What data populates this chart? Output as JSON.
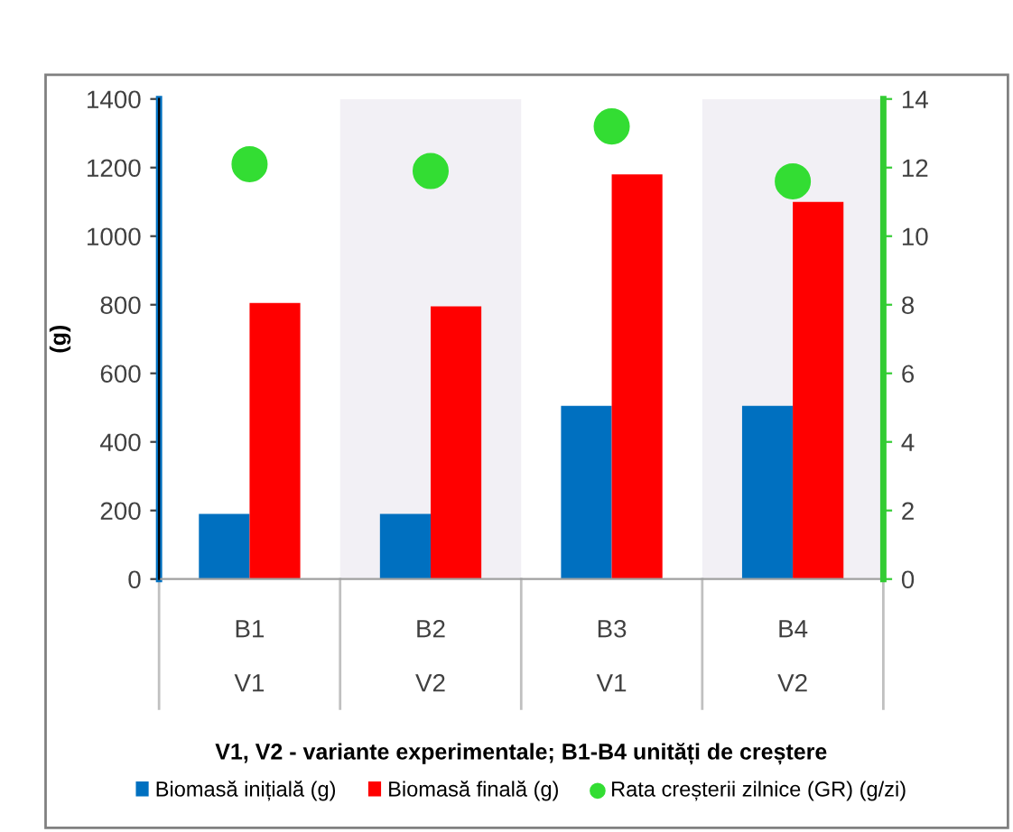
{
  "chart_data": {
    "type": "bar",
    "categories": [
      "B1",
      "B2",
      "B3",
      "B4"
    ],
    "xlabel": "V1, V2 - variante experimentale; B1-B4 unități de creștere",
    "ylabel": "(g)",
    "series": [
      {
        "name": "Biomasă inițială (g)",
        "color": "#0070c0",
        "values": [
          190,
          190,
          505,
          505
        ]
      },
      {
        "name": "Biomasă finală (g)",
        "color": "#ff0000",
        "values": [
          805,
          795,
          1180,
          1100
        ]
      },
      {
        "name": "Rata creșterii zilnice (GR) (g/zi)",
        "type": "scatter",
        "axis": "y2",
        "color": "#33dd33",
        "values": [
          12.1,
          11.9,
          13.2,
          11.6
        ]
      }
    ],
    "annotations": [
      "V1",
      "V2",
      "V1",
      "V2"
    ],
    "bands": [
      {
        "axis": "x",
        "from": "B2",
        "to": "B2",
        "color": "#f2f0f5"
      },
      {
        "axis": "x",
        "from": "B4",
        "to": "B4",
        "color": "#f2f0f5"
      }
    ],
    "ylim": [
      0,
      1400
    ],
    "yticks": [
      0,
      200,
      400,
      600,
      800,
      1000,
      1200,
      1400
    ],
    "y2lim": [
      0,
      14
    ],
    "y2ticks": [
      0,
      2,
      4,
      6,
      8,
      10,
      12,
      14
    ],
    "marker": "circle",
    "legend": "bottom",
    "grid": false
  }
}
